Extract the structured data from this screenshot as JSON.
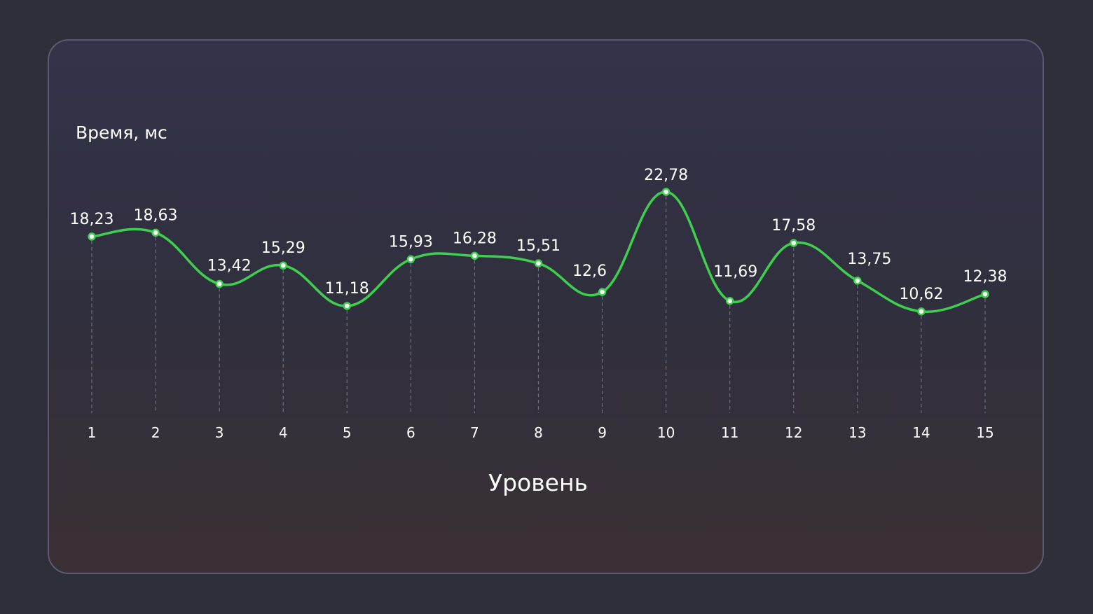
{
  "chart_data": {
    "type": "line",
    "ylabel": "Время, мс",
    "xlabel": "Уровень",
    "categories": [
      "1",
      "2",
      "3",
      "4",
      "5",
      "6",
      "7",
      "8",
      "9",
      "10",
      "11",
      "12",
      "13",
      "14",
      "15"
    ],
    "values": [
      18.23,
      18.63,
      13.42,
      15.29,
      11.18,
      15.93,
      16.28,
      15.51,
      12.6,
      22.78,
      11.69,
      17.58,
      13.75,
      10.62,
      12.38
    ],
    "value_labels": [
      "18,23",
      "18,63",
      "13,42",
      "15,29",
      "11,18",
      "15,93",
      "16,28",
      "15,51",
      "12,6",
      "22,78",
      "11,69",
      "17,58",
      "13,75",
      "10,62",
      "12,38"
    ],
    "line_color": "#3ecf4e",
    "grid": false,
    "drop_lines": true
  }
}
